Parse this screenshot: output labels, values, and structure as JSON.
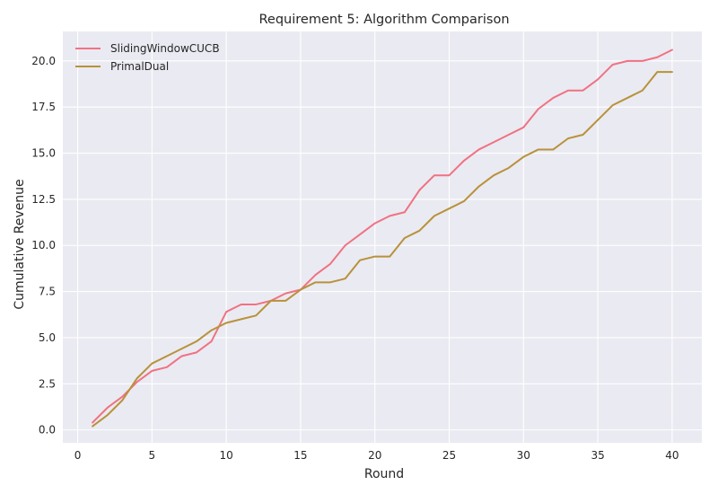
{
  "chart_data": {
    "type": "line",
    "title": "Requirement 5: Algorithm Comparison",
    "xlabel": "Round",
    "ylabel": "Cumulative Revenue",
    "xlim": [
      -1,
      42
    ],
    "ylim": [
      -0.7,
      21.6
    ],
    "xticks": [
      0,
      5,
      10,
      15,
      20,
      25,
      30,
      35,
      40
    ],
    "yticks": [
      0.0,
      2.5,
      5.0,
      7.5,
      10.0,
      12.5,
      15.0,
      17.5,
      20.0
    ],
    "ytick_labels": [
      "0.0",
      "2.5",
      "5.0",
      "7.5",
      "10.0",
      "12.5",
      "15.0",
      "17.5",
      "20.0"
    ],
    "grid": true,
    "legend_position": "top-left",
    "x": [
      1,
      2,
      3,
      4,
      5,
      6,
      7,
      8,
      9,
      10,
      11,
      12,
      13,
      14,
      15,
      16,
      17,
      18,
      19,
      20,
      21,
      22,
      23,
      24,
      25,
      26,
      27,
      28,
      29,
      30,
      31,
      32,
      33,
      34,
      35,
      36,
      37,
      38,
      39,
      40
    ],
    "series": [
      {
        "name": "SlidingWindowCUCB",
        "color": "#f07282",
        "values": [
          0.4,
          1.2,
          1.8,
          2.6,
          3.2,
          3.4,
          4.0,
          4.2,
          4.8,
          6.4,
          6.8,
          6.8,
          7.0,
          7.4,
          7.6,
          8.4,
          9.0,
          10.0,
          10.6,
          11.2,
          11.6,
          11.8,
          13.0,
          13.8,
          13.8,
          14.6,
          15.2,
          15.6,
          16.0,
          16.4,
          17.4,
          18.0,
          18.4,
          18.4,
          19.0,
          19.8,
          20.0,
          20.0,
          20.2,
          20.6
        ]
      },
      {
        "name": "PrimalDual",
        "color": "#b8923a",
        "values": [
          0.2,
          0.8,
          1.6,
          2.8,
          3.6,
          4.0,
          4.4,
          4.8,
          5.4,
          5.8,
          6.0,
          6.2,
          7.0,
          7.0,
          7.6,
          8.0,
          8.0,
          8.2,
          9.2,
          9.4,
          9.4,
          10.4,
          10.8,
          11.6,
          12.0,
          12.4,
          13.2,
          13.8,
          14.2,
          14.8,
          15.2,
          15.2,
          15.8,
          16.0,
          16.8,
          17.6,
          18.0,
          18.4,
          19.4,
          19.4
        ]
      }
    ]
  }
}
